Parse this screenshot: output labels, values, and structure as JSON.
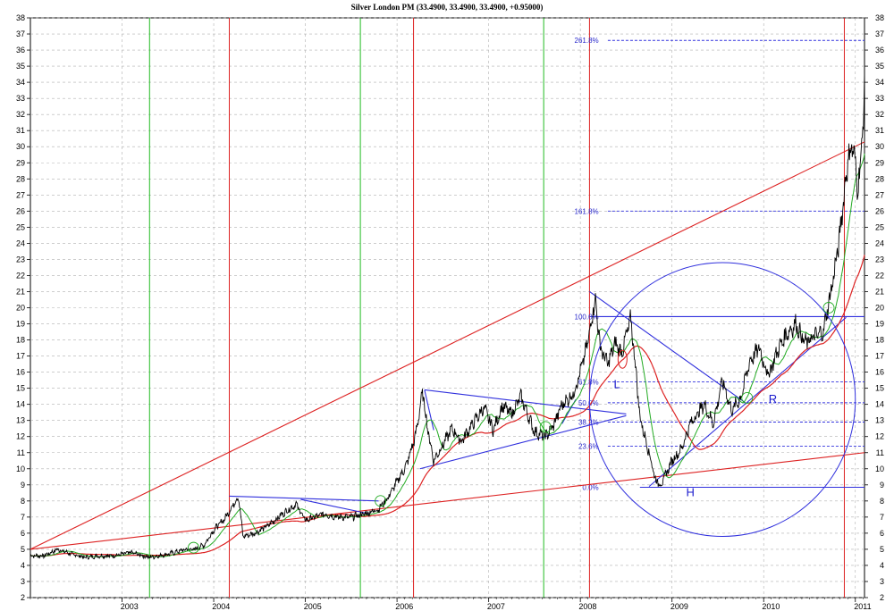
{
  "chart_data": {
    "type": "line",
    "title": "Silver London PM (33.4900, 33.4900, 33.4900, +0.95000)",
    "xlabel": "",
    "ylabel": "",
    "xlim": [
      2002.0,
      2011.1
    ],
    "ylim": [
      2,
      38
    ],
    "grid": true,
    "x_ticks": [
      "2003",
      "2004",
      "2005",
      "2006",
      "2007",
      "2008",
      "2009",
      "2010",
      "2011"
    ],
    "y_ticks": [
      "2",
      "3",
      "4",
      "5",
      "6",
      "7",
      "8",
      "9",
      "10",
      "11",
      "12",
      "13",
      "14",
      "15",
      "16",
      "17",
      "18",
      "19",
      "20",
      "21",
      "22",
      "23",
      "24",
      "25",
      "26",
      "27",
      "28",
      "29",
      "30",
      "31",
      "32",
      "33",
      "34",
      "35",
      "36",
      "37",
      "38"
    ],
    "price_anchors": [
      [
        2002.0,
        4.6
      ],
      [
        2002.15,
        4.6
      ],
      [
        2002.3,
        5.0
      ],
      [
        2002.45,
        4.7
      ],
      [
        2002.6,
        4.5
      ],
      [
        2002.75,
        4.6
      ],
      [
        2002.9,
        4.6
      ],
      [
        2003.1,
        4.8
      ],
      [
        2003.3,
        4.5
      ],
      [
        2003.5,
        4.7
      ],
      [
        2003.7,
        5.0
      ],
      [
        2003.8,
        5.0
      ],
      [
        2003.9,
        5.3
      ],
      [
        2004.0,
        6.2
      ],
      [
        2004.12,
        6.9
      ],
      [
        2004.27,
        8.3
      ],
      [
        2004.32,
        5.8
      ],
      [
        2004.45,
        6.0
      ],
      [
        2004.6,
        6.5
      ],
      [
        2004.75,
        7.2
      ],
      [
        2004.9,
        7.8
      ],
      [
        2005.0,
        6.8
      ],
      [
        2005.2,
        7.2
      ],
      [
        2005.35,
        7.0
      ],
      [
        2005.5,
        7.0
      ],
      [
        2005.65,
        7.2
      ],
      [
        2005.8,
        7.5
      ],
      [
        2005.9,
        8.2
      ],
      [
        2006.0,
        9.2
      ],
      [
        2006.1,
        10.2
      ],
      [
        2006.2,
        12.0
      ],
      [
        2006.28,
        14.8
      ],
      [
        2006.33,
        12.6
      ],
      [
        2006.4,
        10.5
      ],
      [
        2006.5,
        11.5
      ],
      [
        2006.6,
        12.5
      ],
      [
        2006.7,
        11.7
      ],
      [
        2006.85,
        13.0
      ],
      [
        2006.95,
        13.8
      ],
      [
        2007.05,
        12.4
      ],
      [
        2007.15,
        13.9
      ],
      [
        2007.25,
        13.4
      ],
      [
        2007.35,
        14.5
      ],
      [
        2007.5,
        12.3
      ],
      [
        2007.62,
        12.0
      ],
      [
        2007.7,
        12.6
      ],
      [
        2007.8,
        14.0
      ],
      [
        2007.92,
        14.6
      ],
      [
        2008.0,
        16.0
      ],
      [
        2008.08,
        17.8
      ],
      [
        2008.16,
        20.6
      ],
      [
        2008.22,
        17.5
      ],
      [
        2008.3,
        16.5
      ],
      [
        2008.38,
        17.8
      ],
      [
        2008.45,
        17.2
      ],
      [
        2008.55,
        19.3
      ],
      [
        2008.6,
        16.5
      ],
      [
        2008.65,
        13.2
      ],
      [
        2008.75,
        11.0
      ],
      [
        2008.82,
        9.3
      ],
      [
        2008.88,
        9.0
      ],
      [
        2009.0,
        10.5
      ],
      [
        2009.1,
        11.2
      ],
      [
        2009.2,
        12.8
      ],
      [
        2009.35,
        14.0
      ],
      [
        2009.45,
        12.8
      ],
      [
        2009.55,
        15.5
      ],
      [
        2009.65,
        13.6
      ],
      [
        2009.75,
        14.4
      ],
      [
        2009.85,
        16.7
      ],
      [
        2009.95,
        17.5
      ],
      [
        2010.05,
        15.8
      ],
      [
        2010.15,
        17.3
      ],
      [
        2010.25,
        18.4
      ],
      [
        2010.35,
        19.0
      ],
      [
        2010.45,
        17.8
      ],
      [
        2010.55,
        18.2
      ],
      [
        2010.65,
        18.5
      ],
      [
        2010.75,
        21.5
      ],
      [
        2010.82,
        24.0
      ],
      [
        2010.88,
        27.2
      ],
      [
        2010.93,
        29.6
      ],
      [
        2010.98,
        30.0
      ],
      [
        2011.02,
        27.5
      ],
      [
        2011.06,
        29.0
      ],
      [
        2011.1,
        33.5
      ]
    ],
    "series": [
      {
        "name": "price",
        "color": "#000000"
      },
      {
        "name": "",
        "color": "#22aa22",
        "role": "moving average (short)"
      },
      {
        "name": "",
        "color": "#dd2222",
        "role": "moving average (long)"
      }
    ],
    "vertical_lines": [
      {
        "x": 2003.3,
        "color": "#22bb22"
      },
      {
        "x": 2004.17,
        "color": "#dd2222"
      },
      {
        "x": 2005.6,
        "color": "#22bb22"
      },
      {
        "x": 2006.18,
        "color": "#dd2222"
      },
      {
        "x": 2007.6,
        "color": "#22bb22"
      },
      {
        "x": 2008.1,
        "color": "#dd2222"
      },
      {
        "x": 2010.88,
        "color": "#dd2222"
      }
    ],
    "trend_lines": [
      {
        "color": "#dd2222",
        "from": [
          2002.0,
          5.0
        ],
        "to": [
          2011.1,
          30.3
        ]
      },
      {
        "color": "#dd2222",
        "from": [
          2002.0,
          5.0
        ],
        "to": [
          2011.1,
          11.0
        ]
      },
      {
        "color": "#3030dd",
        "from": [
          2004.17,
          8.3
        ],
        "to": [
          2005.8,
          8.0
        ]
      },
      {
        "color": "#3030dd",
        "from": [
          2004.95,
          8.1
        ],
        "to": [
          2005.7,
          7.2
        ]
      },
      {
        "color": "#3030dd",
        "from": [
          2006.3,
          14.9
        ],
        "to": [
          2008.5,
          13.4
        ]
      },
      {
        "color": "#3030dd",
        "from": [
          2006.3,
          14.9
        ],
        "to": [
          2006.4,
          12.4
        ]
      },
      {
        "color": "#3030dd",
        "from": [
          2006.25,
          10.0
        ],
        "to": [
          2008.5,
          13.3
        ]
      },
      {
        "color": "#3030dd",
        "from": [
          2007.8,
          12.8
        ],
        "to": [
          2007.95,
          14.3
        ]
      },
      {
        "color": "#3030dd",
        "from": [
          2008.1,
          21.0
        ],
        "to": [
          2009.8,
          14.1
        ]
      },
      {
        "color": "#3030dd",
        "from": [
          2008.75,
          8.9
        ],
        "to": [
          2010.9,
          19.4
        ]
      },
      {
        "color": "#3030dd",
        "from": [
          2008.1,
          19.45
        ],
        "to": [
          2011.1,
          19.45
        ]
      },
      {
        "color": "#3030dd",
        "from": [
          2008.65,
          8.85
        ],
        "to": [
          2011.1,
          8.85
        ]
      }
    ],
    "fib_levels": [
      {
        "label": "0.0%",
        "value": 8.85
      },
      {
        "label": "23.6%",
        "value": 11.4
      },
      {
        "label": "38.2%",
        "value": 12.9
      },
      {
        "label": "50.0%",
        "value": 14.1
      },
      {
        "label": "61.8%",
        "value": 15.4
      },
      {
        "label": "100.0%",
        "value": 19.45
      },
      {
        "label": "161.8%",
        "value": 26.0
      },
      {
        "label": "261.8%",
        "value": 36.6
      }
    ],
    "circle": {
      "center": [
        2009.55,
        14.3
      ],
      "radius_x_years": 1.45,
      "radius_y_units": 8.5
    },
    "annotations": [
      {
        "text": "L",
        "x": 2008.4,
        "y": 15.0
      },
      {
        "text": "H",
        "x": 2009.2,
        "y": 8.3
      },
      {
        "text": "R",
        "x": 2010.1,
        "y": 14.1
      }
    ]
  }
}
